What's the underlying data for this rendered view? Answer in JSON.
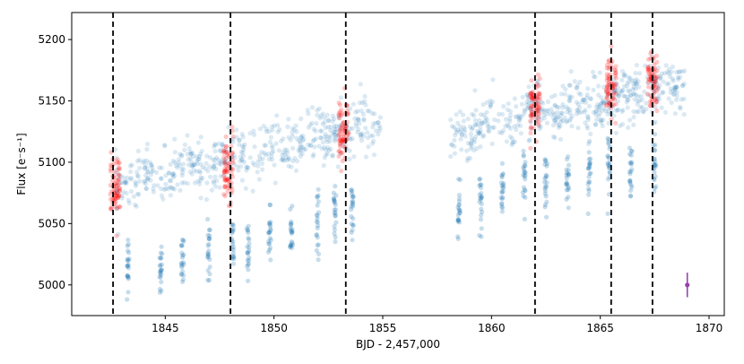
{
  "chart_data": {
    "type": "scatter",
    "xlabel": "BJD - 2,457,000",
    "ylabel": "Flux [e⁻s⁻¹]",
    "xlim": [
      1840.7,
      1870.7
    ],
    "ylim": [
      4975,
      5222
    ],
    "xticks": [
      "1845",
      "1850",
      "1855",
      "1860",
      "1865",
      "1870"
    ],
    "yticks": [
      "5000",
      "5050",
      "5100",
      "5150",
      "5200"
    ],
    "point_color": "#1f77b4",
    "highlight_color": "#ff0000",
    "errorbar_color": "#9b3fb0",
    "segments": [
      {
        "x": [
          1842.7,
          1854.9
        ],
        "baseline": [
          5080,
          5133
        ]
      },
      {
        "x": [
          1858.1,
          1868.9
        ],
        "baseline": [
          5122,
          5165
        ]
      }
    ],
    "transit_dips": [
      {
        "x": 1843.3,
        "flux": 5000
      },
      {
        "x": 1844.8,
        "flux": 5002
      },
      {
        "x": 1845.8,
        "flux": 5012
      },
      {
        "x": 1847.0,
        "flux": 5018
      },
      {
        "x": 1848.1,
        "flux": 5022
      },
      {
        "x": 1848.8,
        "flux": 5015
      },
      {
        "x": 1849.8,
        "flux": 5028
      },
      {
        "x": 1850.8,
        "flux": 5035
      },
      {
        "x": 1852.0,
        "flux": 5042
      },
      {
        "x": 1852.8,
        "flux": 5048
      },
      {
        "x": 1853.6,
        "flux": 5052
      },
      {
        "x": 1858.5,
        "flux": 5050
      },
      {
        "x": 1859.5,
        "flux": 5058
      },
      {
        "x": 1860.5,
        "flux": 5062
      },
      {
        "x": 1861.5,
        "flux": 5075
      },
      {
        "x": 1862.5,
        "flux": 5072
      },
      {
        "x": 1863.5,
        "flux": 5078
      },
      {
        "x": 1864.5,
        "flux": 5082
      },
      {
        "x": 1865.4,
        "flux": 5088
      },
      {
        "x": 1866.4,
        "flux": 5088
      },
      {
        "x": 1867.5,
        "flux": 5090
      }
    ],
    "highlighted_transits": [
      {
        "x": 1842.7,
        "flux": 5078
      },
      {
        "x": 1847.9,
        "flux": 5095
      },
      {
        "x": 1853.2,
        "flux": 5125
      },
      {
        "x": 1862.0,
        "flux": 5143
      },
      {
        "x": 1865.5,
        "flux": 5162
      },
      {
        "x": 1867.4,
        "flux": 5165
      }
    ],
    "vlines": [
      1842.6,
      1848.0,
      1853.3,
      1862.0,
      1865.5,
      1867.4
    ],
    "errorbar": {
      "x": 1869.0,
      "y": 5000,
      "yerr": 10
    }
  }
}
